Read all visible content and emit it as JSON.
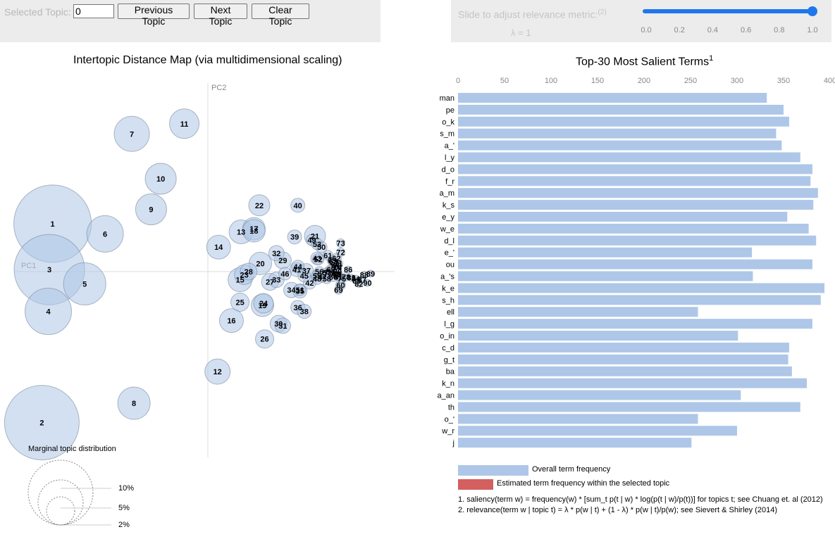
{
  "controls": {
    "topic_label": "Selected Topic:",
    "topic_value": "0",
    "prev_label": "Previous Topic",
    "next_label": "Next Topic",
    "clear_label": "Clear Topic",
    "slider_label": "Slide to adjust relevance metric:",
    "slider_note": "(2)",
    "lambda_text": "λ = 1",
    "slider_ticks": [
      "0.0",
      "0.2",
      "0.4",
      "0.6",
      "0.8",
      "1.0"
    ],
    "lambda": 1.0,
    "accent_color": "#1f77ee"
  },
  "chart_data": [
    {
      "type": "scatter",
      "title": "Intertopic Distance Map (via multidimensional scaling)",
      "xlabel": "PC1",
      "ylabel": "PC2",
      "bubble_color": "#aec7e8",
      "topics": [
        {
          "label": "1",
          "x": -0.145,
          "y": 0.047,
          "r": 55
        },
        {
          "label": "2",
          "x": -0.155,
          "y": -0.148,
          "r": 53
        },
        {
          "label": "3",
          "x": -0.148,
          "y": 0.002,
          "r": 50
        },
        {
          "label": "4",
          "x": -0.149,
          "y": -0.039,
          "r": 33
        },
        {
          "label": "5",
          "x": -0.115,
          "y": -0.012,
          "r": 30
        },
        {
          "label": "6",
          "x": -0.096,
          "y": 0.037,
          "r": 26
        },
        {
          "label": "7",
          "x": -0.071,
          "y": 0.135,
          "r": 25
        },
        {
          "label": "8",
          "x": -0.069,
          "y": -0.129,
          "r": 23
        },
        {
          "label": "9",
          "x": -0.053,
          "y": 0.061,
          "r": 22
        },
        {
          "label": "10",
          "x": -0.044,
          "y": 0.091,
          "r": 22
        },
        {
          "label": "11",
          "x": -0.022,
          "y": 0.145,
          "r": 21
        },
        {
          "label": "12",
          "x": 0.009,
          "y": -0.098,
          "r": 18
        },
        {
          "label": "13",
          "x": 0.031,
          "y": 0.039,
          "r": 17
        },
        {
          "label": "14",
          "x": 0.01,
          "y": 0.024,
          "r": 17
        },
        {
          "label": "15",
          "x": 0.03,
          "y": -0.008,
          "r": 17
        },
        {
          "label": "16",
          "x": 0.022,
          "y": -0.048,
          "r": 17
        },
        {
          "label": "17",
          "x": 0.043,
          "y": 0.042,
          "r": 16
        },
        {
          "label": "18",
          "x": 0.043,
          "y": 0.04,
          "r": 16
        },
        {
          "label": "19",
          "x": 0.051,
          "y": -0.033,
          "r": 16
        },
        {
          "label": "20",
          "x": 0.049,
          "y": 0.008,
          "r": 16
        },
        {
          "label": "21",
          "x": 0.1,
          "y": 0.035,
          "r": 15
        },
        {
          "label": "22",
          "x": 0.048,
          "y": 0.065,
          "r": 15
        },
        {
          "label": "23",
          "x": 0.034,
          "y": -0.003,
          "r": 14
        },
        {
          "label": "24",
          "x": 0.052,
          "y": -0.031,
          "r": 14
        },
        {
          "label": "25",
          "x": 0.03,
          "y": -0.03,
          "r": 13
        },
        {
          "label": "26",
          "x": 0.053,
          "y": -0.066,
          "r": 13
        },
        {
          "label": "27",
          "x": 0.058,
          "y": -0.01,
          "r": 12
        },
        {
          "label": "28",
          "x": 0.038,
          "y": 0.0,
          "r": 12
        },
        {
          "label": "29",
          "x": 0.07,
          "y": 0.011,
          "r": 12
        },
        {
          "label": "30",
          "x": 0.066,
          "y": -0.051,
          "r": 12
        },
        {
          "label": "31",
          "x": 0.07,
          "y": -0.053,
          "r": 11
        },
        {
          "label": "32",
          "x": 0.064,
          "y": 0.018,
          "r": 11
        },
        {
          "label": "33",
          "x": 0.064,
          "y": -0.008,
          "r": 11
        },
        {
          "label": "34",
          "x": 0.078,
          "y": -0.018,
          "r": 11
        },
        {
          "label": "35",
          "x": 0.086,
          "y": -0.019,
          "r": 10
        },
        {
          "label": "36",
          "x": 0.084,
          "y": -0.035,
          "r": 10
        },
        {
          "label": "37",
          "x": 0.092,
          "y": 0.001,
          "r": 10
        },
        {
          "label": "38",
          "x": 0.09,
          "y": -0.039,
          "r": 10
        },
        {
          "label": "39",
          "x": 0.081,
          "y": 0.034,
          "r": 10
        },
        {
          "label": "40",
          "x": 0.084,
          "y": 0.065,
          "r": 10
        },
        {
          "label": "41",
          "x": 0.083,
          "y": 0.002,
          "r": 10
        },
        {
          "label": "42",
          "x": 0.095,
          "y": -0.011,
          "r": 9
        },
        {
          "label": "43",
          "x": 0.102,
          "y": 0.013,
          "r": 9
        },
        {
          "label": "44",
          "x": 0.084,
          "y": 0.005,
          "r": 9
        },
        {
          "label": "45",
          "x": 0.09,
          "y": -0.004,
          "r": 9
        },
        {
          "label": "46",
          "x": 0.072,
          "y": -0.002,
          "r": 9
        },
        {
          "label": "47",
          "x": 0.107,
          "y": -0.005,
          "r": 8
        },
        {
          "label": "48",
          "x": 0.102,
          "y": -0.007,
          "r": 8
        },
        {
          "label": "49",
          "x": 0.097,
          "y": 0.031,
          "r": 8
        },
        {
          "label": "50",
          "x": 0.106,
          "y": 0.024,
          "r": 8
        },
        {
          "label": "51",
          "x": 0.086,
          "y": -0.018,
          "r": 8
        },
        {
          "label": "52",
          "x": 0.103,
          "y": 0.012,
          "r": 8
        },
        {
          "label": "53",
          "x": 0.102,
          "y": 0.027,
          "r": 8
        },
        {
          "label": "54",
          "x": 0.114,
          "y": 0.0,
          "r": 8
        },
        {
          "label": "55",
          "x": 0.102,
          "y": -0.004,
          "r": 8
        },
        {
          "label": "56",
          "x": 0.104,
          "y": 0.0,
          "r": 7
        },
        {
          "label": "57",
          "x": 0.111,
          "y": -0.001,
          "r": 7
        },
        {
          "label": "58",
          "x": 0.111,
          "y": -0.007,
          "r": 7
        },
        {
          "label": "59",
          "x": 0.121,
          "y": -0.003,
          "r": 7
        },
        {
          "label": "60",
          "x": 0.124,
          "y": -0.013,
          "r": 7
        },
        {
          "label": "61",
          "x": 0.112,
          "y": 0.016,
          "r": 7
        },
        {
          "label": "62",
          "x": 0.12,
          "y": 0.013,
          "r": 7
        },
        {
          "label": "63",
          "x": 0.117,
          "y": 0.01,
          "r": 7
        },
        {
          "label": "64",
          "x": 0.119,
          "y": 0.007,
          "r": 7
        },
        {
          "label": "65",
          "x": 0.116,
          "y": 0.011,
          "r": 7
        },
        {
          "label": "66",
          "x": 0.117,
          "y": -0.005,
          "r": 7
        },
        {
          "label": "67",
          "x": 0.115,
          "y": 0.002,
          "r": 7
        },
        {
          "label": "68",
          "x": 0.12,
          "y": -0.002,
          "r": 6
        },
        {
          "label": "69",
          "x": 0.122,
          "y": -0.018,
          "r": 6
        },
        {
          "label": "70",
          "x": 0.118,
          "y": -0.002,
          "r": 6
        },
        {
          "label": "71",
          "x": 0.122,
          "y": 0.008,
          "r": 6
        },
        {
          "label": "72",
          "x": 0.124,
          "y": 0.019,
          "r": 6
        },
        {
          "label": "73",
          "x": 0.124,
          "y": 0.028,
          "r": 6
        },
        {
          "label": "74",
          "x": 0.121,
          "y": 0.004,
          "r": 6
        },
        {
          "label": "75",
          "x": 0.125,
          "y": -0.007,
          "r": 6
        },
        {
          "label": "76",
          "x": 0.118,
          "y": 0.005,
          "r": 6
        },
        {
          "label": "77",
          "x": 0.112,
          "y": -0.002,
          "r": 6
        },
        {
          "label": "78",
          "x": 0.129,
          "y": -0.005,
          "r": 6
        },
        {
          "label": "79",
          "x": 0.121,
          "y": 0.006,
          "r": 6
        },
        {
          "label": "80",
          "x": 0.121,
          "y": 0.0,
          "r": 6
        },
        {
          "label": "81",
          "x": 0.122,
          "y": -0.005,
          "r": 6
        },
        {
          "label": "82",
          "x": 0.141,
          "y": -0.012,
          "r": 5
        },
        {
          "label": "83",
          "x": 0.134,
          "y": -0.006,
          "r": 5
        },
        {
          "label": "84",
          "x": 0.138,
          "y": -0.007,
          "r": 5
        },
        {
          "label": "85",
          "x": 0.139,
          "y": -0.009,
          "r": 5
        },
        {
          "label": "86",
          "x": 0.131,
          "y": 0.002,
          "r": 5
        },
        {
          "label": "87",
          "x": 0.144,
          "y": -0.008,
          "r": 5
        },
        {
          "label": "88",
          "x": 0.146,
          "y": -0.003,
          "r": 5
        },
        {
          "label": "89",
          "x": 0.152,
          "y": -0.002,
          "r": 5
        },
        {
          "label": "90",
          "x": 0.149,
          "y": -0.011,
          "r": 5
        }
      ],
      "marginal_legend": {
        "title": "Marginal topic distribution",
        "levels": [
          {
            "label": "2%",
            "r": 20
          },
          {
            "label": "5%",
            "r": 32
          },
          {
            "label": "10%",
            "r": 46
          }
        ]
      }
    },
    {
      "type": "bar",
      "orientation": "horizontal",
      "title": "Top-30 Most Salient Terms",
      "title_note": "1",
      "xticks": [
        0,
        50,
        100,
        150,
        200,
        250,
        300,
        350,
        400
      ],
      "xlim": [
        0,
        400
      ],
      "bar_color": "#aec7e8",
      "categories": [
        "man",
        "pe",
        "o_k",
        "s_m",
        "a_'",
        "l_y",
        "d_o",
        "f_r",
        "a_m",
        "k_s",
        "e_y",
        "w_e",
        "d_l",
        "e_'",
        "ou",
        "a_'s",
        "k_e",
        "s_h",
        "ell",
        "l_g",
        "o_in",
        "c_d",
        "g_t",
        "ba",
        "k_n",
        "a_an",
        "th",
        "o_'",
        "w_r",
        "j"
      ],
      "values": [
        332,
        350,
        356,
        342,
        348,
        368,
        381,
        379,
        387,
        382,
        354,
        377,
        385,
        316,
        381,
        317,
        394,
        390,
        258,
        381,
        301,
        356,
        355,
        359,
        375,
        304,
        368,
        258,
        300,
        251
      ],
      "legend": [
        {
          "label": "Overall term frequency",
          "color": "#aec7e8"
        },
        {
          "label": "Estimated term frequency within the selected topic",
          "color": "#d45f5f"
        }
      ],
      "footnotes": [
        "1. saliency(term w) = frequency(w) * [sum_t p(t | w) * log(p(t | w)/p(t))] for topics t; see Chuang et. al (2012)",
        "2. relevance(term w | topic t) = λ * p(w | t) + (1 - λ) * p(w | t)/p(w); see Sievert & Shirley (2014)"
      ]
    }
  ]
}
